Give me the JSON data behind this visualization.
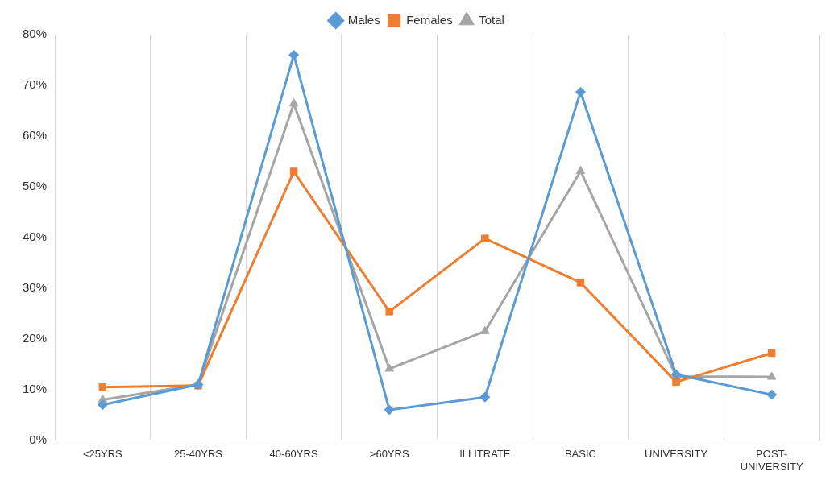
{
  "chart_data": {
    "type": "line",
    "categories": [
      "<25YRS",
      "25-40YRS",
      "40-60YRS",
      ">60YRS",
      "ILLITRATE",
      "BASIC",
      "UNIVERSITY",
      "POST-UNIVERSITY"
    ],
    "series": [
      {
        "name": "Males",
        "color": "#5b9bd5",
        "marker": "diamond",
        "values": [
          7,
          11,
          76,
          6,
          8.5,
          68.7,
          13,
          9
        ]
      },
      {
        "name": "Females",
        "color": "#ed7d31",
        "marker": "square",
        "values": [
          10.5,
          10.8,
          53,
          25.4,
          39.8,
          31.1,
          11.5,
          17.2
        ]
      },
      {
        "name": "Total",
        "color": "#a5a5a5",
        "marker": "triangle",
        "values": [
          8,
          11,
          66.4,
          14.1,
          21.5,
          53.1,
          12.6,
          12.5
        ]
      }
    ],
    "ylim": [
      0,
      80
    ],
    "yticks": [
      {
        "value": 0,
        "label": "0%"
      },
      {
        "value": 10,
        "label": "10%"
      },
      {
        "value": 20,
        "label": "20%"
      },
      {
        "value": 30,
        "label": "30%"
      },
      {
        "value": 40,
        "label": "40%"
      },
      {
        "value": 50,
        "label": "50%"
      },
      {
        "value": 60,
        "label": "60%"
      },
      {
        "value": 70,
        "label": "70%"
      },
      {
        "value": 80,
        "label": "80%"
      }
    ],
    "grid": "x",
    "legend": "top",
    "line_style": "solid"
  }
}
